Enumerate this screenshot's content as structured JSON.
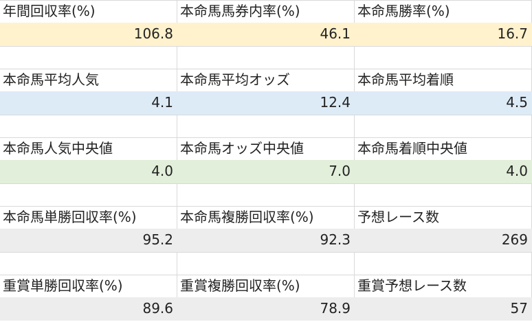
{
  "sections": [
    {
      "labels": [
        "年間回収率(%)",
        "本命馬馬券内率(%)",
        "本命馬勝率(%)"
      ],
      "values": [
        "106.8",
        "46.1",
        "16.7"
      ]
    },
    {
      "labels": [
        "本命馬平均人気",
        "本命馬平均オッズ",
        "本命馬平均着順"
      ],
      "values": [
        "4.1",
        "12.4",
        "4.5"
      ]
    },
    {
      "labels": [
        "本命馬人気中央値",
        "本命馬オッズ中央値",
        "本命馬着順中央値"
      ],
      "values": [
        "4.0",
        "7.0",
        "4.0"
      ]
    },
    {
      "labels": [
        "本命馬単勝回収率(%)",
        "本命馬複勝回収率(%)",
        "予想レース数"
      ],
      "values": [
        "95.2",
        "92.3",
        "269"
      ]
    },
    {
      "labels": [
        "重賞単勝回収率(%)",
        "重賞複勝回収率(%)",
        "重賞予想レース数"
      ],
      "values": [
        "89.6",
        "78.9",
        "57"
      ]
    }
  ]
}
